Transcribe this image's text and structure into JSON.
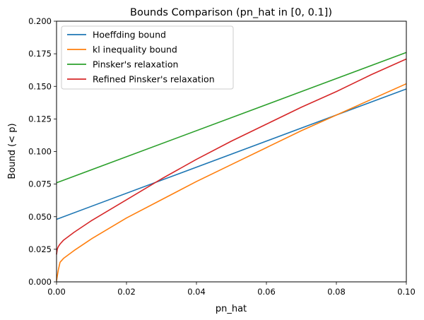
{
  "chart_data": {
    "type": "line",
    "title": "Bounds Comparison (pn_hat in [0, 0.1])",
    "xlabel": "pn_hat",
    "ylabel": "Bound (< p)",
    "xlim": [
      0,
      0.1
    ],
    "ylim": [
      0,
      0.2
    ],
    "x_ticks": [
      0,
      0.02,
      0.04,
      0.06,
      0.08,
      0.1
    ],
    "x_tick_labels": [
      "0.00",
      "0.02",
      "0.04",
      "0.06",
      "0.08",
      "0.10"
    ],
    "y_ticks": [
      0,
      0.025,
      0.05,
      0.075,
      0.1,
      0.125,
      0.15,
      0.175,
      0.2
    ],
    "y_tick_labels": [
      "0.000",
      "0.025",
      "0.050",
      "0.075",
      "0.100",
      "0.125",
      "0.150",
      "0.175",
      "0.200"
    ],
    "grid": false,
    "legend_position": "top-left",
    "series": [
      {
        "name": "Hoeffding bound",
        "color": "#1f77b4",
        "x": [
          0,
          0.1
        ],
        "y": [
          0.048,
          0.148
        ]
      },
      {
        "name": "kl inequality bound",
        "color": "#ff7f0e",
        "x": [
          0,
          0.0005,
          0.001,
          0.002,
          0.005,
          0.01,
          0.015,
          0.02,
          0.03,
          0.04,
          0.05,
          0.06,
          0.07,
          0.08,
          0.09,
          0.1
        ],
        "y": [
          0.001,
          0.009,
          0.015,
          0.018,
          0.024,
          0.033,
          0.041,
          0.049,
          0.063,
          0.077,
          0.09,
          0.103,
          0.116,
          0.128,
          0.14,
          0.152
        ]
      },
      {
        "name": "Pinsker's relaxation",
        "color": "#2ca02c",
        "x": [
          0,
          0.1
        ],
        "y": [
          0.076,
          0.176
        ]
      },
      {
        "name": "Refined Pinsker's relaxation",
        "color": "#d62728",
        "x": [
          0,
          0.0002,
          0.0005,
          0.001,
          0.002,
          0.005,
          0.01,
          0.015,
          0.02,
          0.03,
          0.04,
          0.05,
          0.06,
          0.07,
          0.08,
          0.09,
          0.1
        ],
        "y": [
          0.021,
          0.025,
          0.027,
          0.029,
          0.032,
          0.038,
          0.047,
          0.055,
          0.063,
          0.079,
          0.094,
          0.108,
          0.121,
          0.134,
          0.146,
          0.159,
          0.171
        ]
      }
    ]
  }
}
